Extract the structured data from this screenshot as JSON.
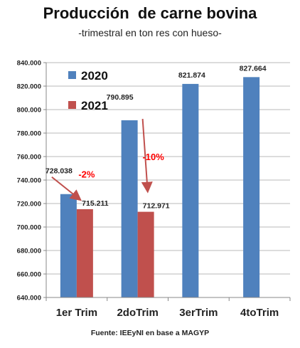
{
  "chart_data": {
    "type": "bar",
    "title": "Producción  de carne bovina",
    "subtitle": "-trimestral en ton res con hueso-",
    "categories": [
      "1er Trim",
      "2doTrim",
      "3erTrim",
      "4toTrim"
    ],
    "series": [
      {
        "name": "2020",
        "color": "#4f81bd",
        "values": [
          728038,
          790895,
          821874,
          827664
        ],
        "labels": [
          "728.038",
          "790.895",
          "821.874",
          "827.664"
        ]
      },
      {
        "name": "2021",
        "color": "#c0504d",
        "values": [
          715211,
          712971,
          null,
          null
        ],
        "labels": [
          "715.211",
          "712.971",
          "",
          ""
        ]
      }
    ],
    "ylim": [
      640000,
      840000
    ],
    "yticks": [
      "640.000",
      "660.000",
      "680.000",
      "700.000",
      "720.000",
      "740.000",
      "760.000",
      "780.000",
      "800.000",
      "820.000",
      "840.000"
    ],
    "grid": true,
    "legend_position": "top-left",
    "annotations": [
      {
        "category": "1er Trim",
        "text": "-2%",
        "color": "#ff0000"
      },
      {
        "category": "2doTrim",
        "text": "-10%",
        "color": "#ff0000"
      }
    ],
    "source": "Fuente: IEEyNI en base a MAGYP"
  }
}
